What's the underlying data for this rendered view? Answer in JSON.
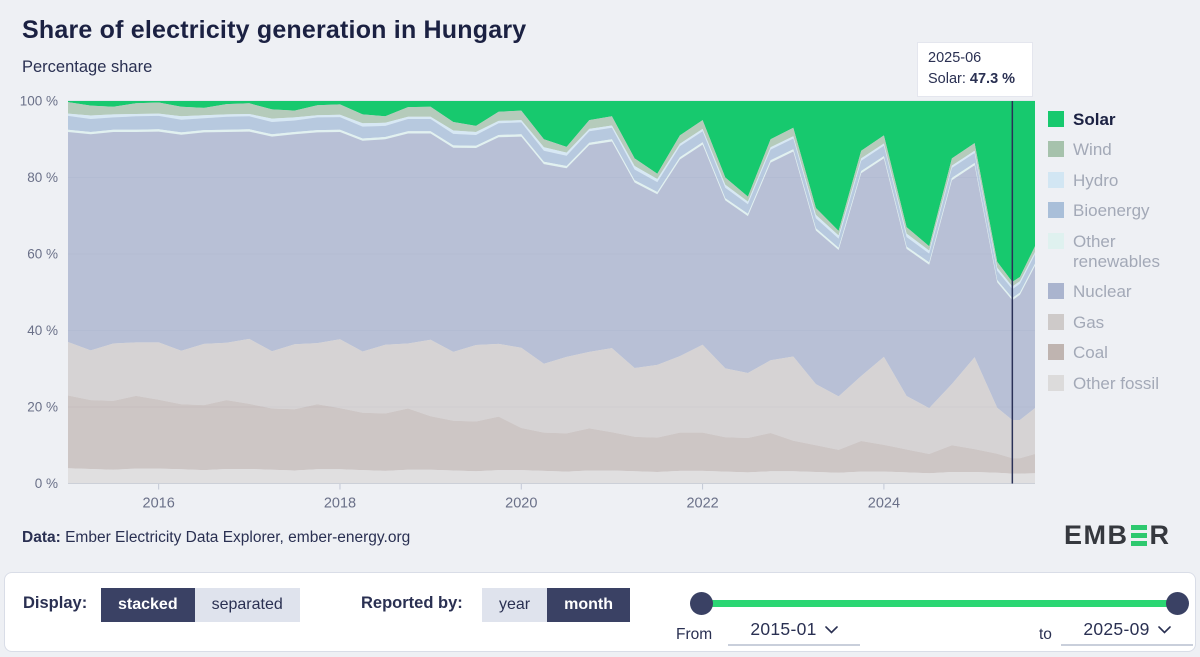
{
  "header": {
    "title": "Share of electricity generation in Hungary",
    "subtitle": "Percentage share"
  },
  "tooltip": {
    "date": "2025-06",
    "series_label": "Solar:",
    "value": "47.3 %"
  },
  "axes": {
    "y_ticks": [
      "100 %",
      "80 %",
      "60 %",
      "40 %",
      "20 %",
      "0 %"
    ],
    "x_ticks": [
      "2016",
      "2018",
      "2020",
      "2022",
      "2024"
    ]
  },
  "chart_data": {
    "type": "area",
    "stacked": true,
    "title": "Share of electricity generation in Hungary",
    "ylabel": "Percentage share",
    "unit": "%",
    "ylim": [
      0,
      100
    ],
    "x_range": [
      "2015-01",
      "2025-09"
    ],
    "legend_position": "right",
    "grid": true,
    "x": [
      "2015-01",
      "2015-04",
      "2015-07",
      "2015-10",
      "2016-01",
      "2016-04",
      "2016-07",
      "2016-10",
      "2017-01",
      "2017-04",
      "2017-07",
      "2017-10",
      "2018-01",
      "2018-04",
      "2018-07",
      "2018-10",
      "2019-01",
      "2019-04",
      "2019-07",
      "2019-10",
      "2020-01",
      "2020-04",
      "2020-07",
      "2020-10",
      "2021-01",
      "2021-04",
      "2021-07",
      "2021-10",
      "2022-01",
      "2022-04",
      "2022-07",
      "2022-10",
      "2023-01",
      "2023-04",
      "2023-07",
      "2023-10",
      "2024-01",
      "2024-04",
      "2024-07",
      "2024-10",
      "2025-01",
      "2025-04",
      "2025-06",
      "2025-07",
      "2025-09"
    ],
    "series": [
      {
        "name": "Solar",
        "color": "#17c96e",
        "values": [
          0.3,
          1.2,
          1.5,
          0.6,
          0.4,
          1.5,
          1.8,
          0.8,
          0.6,
          2.2,
          2.5,
          1.1,
          0.9,
          3.5,
          4.0,
          1.6,
          1.5,
          5.5,
          6.5,
          2.8,
          2.5,
          10,
          12,
          5,
          4,
          15,
          19,
          9,
          5,
          20,
          25,
          10,
          7,
          28,
          34,
          13,
          9,
          33,
          38,
          15,
          11,
          42,
          47.3,
          46,
          38
        ]
      },
      {
        "name": "Wind",
        "color": "#a6c2ac",
        "values": [
          3.0,
          2.6,
          2.0,
          2.8,
          2.9,
          2.5,
          1.9,
          2.7,
          2.8,
          2.4,
          1.8,
          2.6,
          2.7,
          2.3,
          1.7,
          2.5,
          2.6,
          2.2,
          1.6,
          2.4,
          2.5,
          2.1,
          1.5,
          2.3,
          2.4,
          2.0,
          1.4,
          2.2,
          2.3,
          1.9,
          1.3,
          2.1,
          2.2,
          1.8,
          1.2,
          2.0,
          2.1,
          1.7,
          1.1,
          1.9,
          2.0,
          1.6,
          1.2,
          1.1,
          1.5
        ]
      },
      {
        "name": "Hydro",
        "color": "#d2e6f3",
        "values": [
          0.6,
          0.9,
          0.8,
          0.6,
          0.6,
          0.9,
          0.8,
          0.6,
          0.6,
          0.9,
          0.8,
          0.6,
          0.6,
          0.9,
          0.8,
          0.6,
          0.6,
          0.9,
          0.8,
          0.6,
          0.6,
          0.9,
          0.8,
          0.6,
          0.6,
          0.9,
          0.8,
          0.6,
          0.6,
          0.8,
          0.7,
          0.6,
          0.6,
          0.9,
          0.8,
          0.6,
          0.6,
          0.9,
          0.8,
          0.6,
          0.6,
          0.8,
          0.7,
          0.7,
          0.6
        ]
      },
      {
        "name": "Bioenergy",
        "color": "#a9bfd9",
        "values": [
          3.6,
          3.4,
          3.2,
          3.5,
          3.5,
          3.3,
          3.1,
          3.4,
          3.4,
          3.2,
          3.0,
          3.3,
          3.3,
          3.1,
          2.9,
          3.2,
          3.2,
          3.0,
          2.8,
          3.1,
          3.1,
          2.9,
          2.7,
          3.0,
          3.0,
          2.8,
          2.6,
          2.9,
          2.9,
          2.7,
          2.5,
          2.8,
          2.8,
          2.6,
          2.4,
          2.7,
          2.7,
          2.5,
          2.3,
          2.6,
          2.6,
          2.4,
          2.3,
          2.3,
          2.4
        ]
      },
      {
        "name": "Other renewables",
        "color": "#dff1ef",
        "values": [
          0.6,
          0.6,
          0.6,
          0.6,
          0.6,
          0.6,
          0.6,
          0.6,
          0.6,
          0.6,
          0.6,
          0.6,
          0.6,
          0.6,
          0.6,
          0.6,
          0.6,
          0.6,
          0.6,
          0.6,
          0.6,
          0.6,
          0.6,
          0.6,
          0.6,
          0.6,
          0.6,
          0.6,
          0.6,
          0.6,
          0.6,
          0.6,
          0.6,
          0.6,
          0.6,
          0.6,
          0.6,
          0.6,
          0.6,
          0.6,
          0.6,
          0.6,
          0.6,
          0.6,
          0.6
        ]
      },
      {
        "name": "Nuclear",
        "color": "#aab4ce",
        "values": [
          54.9,
          56.5,
          55.3,
          55.0,
          55.1,
          56.5,
          55.3,
          55.1,
          54.2,
          56.1,
          54.9,
          55.1,
          54.2,
          55.1,
          53.7,
          54.9,
          53.9,
          53.4,
          51.5,
          54.0,
          55.2,
          52.2,
          49.3,
          54.1,
          54.0,
          48.5,
          44.6,
          51.4,
          52.3,
          43.9,
          41.0,
          51.7,
          53.6,
          40.2,
          38.3,
          53.0,
          51.9,
          38.5,
          37.5,
          53.3,
          50.2,
          32.8,
          31.3,
          32.7,
          37.2
        ]
      },
      {
        "name": "Gas",
        "color": "#cecac9",
        "values": [
          14,
          13,
          15,
          14,
          15,
          14,
          16,
          15,
          17,
          15,
          17,
          16,
          18,
          16,
          18,
          17,
          20,
          18,
          20,
          19,
          21,
          18,
          20,
          20,
          22,
          18,
          19,
          20,
          23,
          18,
          17,
          19,
          22,
          16,
          14,
          17,
          23,
          14,
          12,
          16,
          24,
          12,
          10,
          10,
          12
        ]
      },
      {
        "name": "Coal",
        "color": "#bfb4b0",
        "values": [
          19,
          18,
          18,
          19,
          18,
          17,
          17,
          18,
          17,
          16,
          16,
          17,
          16,
          15,
          15,
          16,
          14,
          13,
          13,
          14,
          11,
          10,
          10,
          11,
          10,
          9,
          9,
          10,
          10,
          9,
          9,
          10,
          8,
          7,
          6,
          8,
          7,
          6,
          5,
          7,
          6,
          5,
          4,
          4,
          5
        ]
      },
      {
        "name": "Other fossil",
        "color": "#dcdbdb",
        "values": [
          4.0,
          3.8,
          3.6,
          3.9,
          3.9,
          3.7,
          3.5,
          3.8,
          3.8,
          3.6,
          3.4,
          3.7,
          3.7,
          3.5,
          3.3,
          3.6,
          3.6,
          3.4,
          3.2,
          3.5,
          3.5,
          3.3,
          3.1,
          3.4,
          3.4,
          3.2,
          3.0,
          3.3,
          3.3,
          3.1,
          2.9,
          3.2,
          3.2,
          3.0,
          2.8,
          3.1,
          3.1,
          2.9,
          2.7,
          3.0,
          3.0,
          2.8,
          2.6,
          2.6,
          2.7
        ]
      }
    ],
    "highlight": {
      "x": "2025-06",
      "series": "Solar",
      "value": 47.3
    }
  },
  "footer": {
    "data_label": "Data:",
    "data_text": " Ember Electricity Data Explorer, ember-energy.org",
    "brand_prefix": "EMB",
    "brand_suffix": "R"
  },
  "controls": {
    "display": {
      "label": "Display:",
      "options": [
        {
          "label": "stacked",
          "selected": true
        },
        {
          "label": "separated",
          "selected": false
        }
      ]
    },
    "reported_by": {
      "label": "Reported by:",
      "options": [
        {
          "label": "year",
          "selected": false
        },
        {
          "label": "month",
          "selected": true
        }
      ]
    },
    "range": {
      "from_label": "From",
      "from_value": "2015-01",
      "to_label": "to",
      "to_value": "2025-09"
    }
  },
  "colors": {
    "accent_green": "#2bd673",
    "dark_navy": "#3a4164",
    "text_navy": "#2a3052",
    "cursor_line": "#2a3157"
  }
}
